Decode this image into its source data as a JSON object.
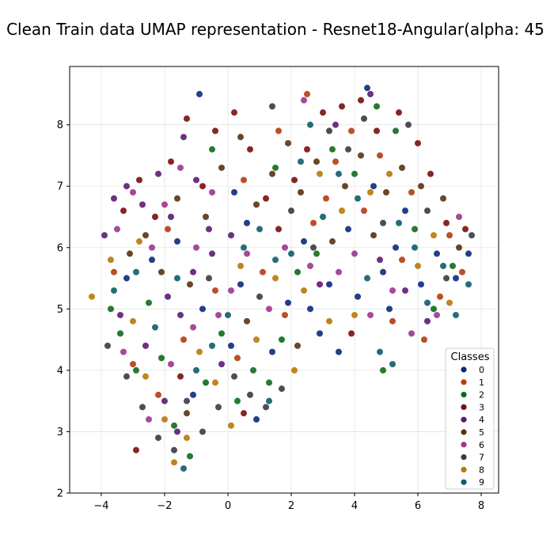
{
  "chart_data": {
    "type": "scatter",
    "title": "Clean Train data UMAP representation - Resnet18-Angular(alpha: 45",
    "xlabel": "",
    "ylabel": "",
    "xlim": [
      -5.0,
      8.55
    ],
    "ylim": [
      2.0,
      8.95
    ],
    "xticks": [
      -4,
      -2,
      0,
      2,
      4,
      6,
      8
    ],
    "yticks": [
      2,
      3,
      4,
      5,
      6,
      7,
      8
    ],
    "xtick_labels": [
      "−4",
      "−2",
      "0",
      "2",
      "4",
      "6",
      "8"
    ],
    "ytick_labels": [
      "2",
      "3",
      "4",
      "5",
      "6",
      "7",
      "8"
    ],
    "grid": true,
    "legend": {
      "title": "Classes",
      "placement": "lower-right",
      "entries": [
        "0",
        "1",
        "2",
        "3",
        "4",
        "5",
        "6",
        "7",
        "8",
        "9"
      ]
    },
    "series": [
      {
        "name": "0",
        "color": "#0b2a7a",
        "points": [
          [
            -3.2,
            5.5
          ],
          [
            -2.4,
            5.8
          ],
          [
            -1.6,
            6.1
          ],
          [
            -0.8,
            5.0
          ],
          [
            0.1,
            4.4
          ],
          [
            0.4,
            5.4
          ],
          [
            0.6,
            6.4
          ],
          [
            0.2,
            6.9
          ],
          [
            1.4,
            4.3
          ],
          [
            1.9,
            5.1
          ],
          [
            2.4,
            6.1
          ],
          [
            2.6,
            5.0
          ],
          [
            2.9,
            4.6
          ],
          [
            3.2,
            5.4
          ],
          [
            3.8,
            6.3
          ],
          [
            4.1,
            5.2
          ],
          [
            4.4,
            8.6
          ],
          [
            4.6,
            7.0
          ],
          [
            4.9,
            5.6
          ],
          [
            5.1,
            5.0
          ],
          [
            5.3,
            6.0
          ],
          [
            5.6,
            6.6
          ],
          [
            6.1,
            5.4
          ],
          [
            6.6,
            5.9
          ],
          [
            7.2,
            5.5
          ],
          [
            7.6,
            5.9
          ],
          [
            -0.9,
            8.5
          ],
          [
            -1.1,
            3.6
          ],
          [
            0.9,
            3.2
          ],
          [
            3.5,
            4.3
          ]
        ]
      },
      {
        "name": "1",
        "color": "#b33d0f",
        "points": [
          [
            -3.0,
            4.1
          ],
          [
            -2.2,
            3.6
          ],
          [
            -1.4,
            4.5
          ],
          [
            -0.4,
            5.3
          ],
          [
            0.5,
            7.1
          ],
          [
            1.1,
            5.6
          ],
          [
            1.6,
            7.9
          ],
          [
            2.5,
            8.5
          ],
          [
            2.7,
            6.4
          ],
          [
            3.1,
            6.8
          ],
          [
            3.4,
            7.4
          ],
          [
            3.9,
            7.9
          ],
          [
            4.3,
            6.6
          ],
          [
            4.8,
            7.5
          ],
          [
            5.2,
            4.8
          ],
          [
            5.5,
            5.8
          ],
          [
            5.8,
            6.9
          ],
          [
            6.2,
            4.5
          ],
          [
            6.7,
            5.2
          ],
          [
            7.0,
            6.2
          ],
          [
            7.4,
            5.6
          ],
          [
            -3.6,
            5.6
          ],
          [
            -1.9,
            6.3
          ],
          [
            0.3,
            4.2
          ],
          [
            1.8,
            4.9
          ]
        ]
      },
      {
        "name": "2",
        "color": "#0d6b18",
        "points": [
          [
            -3.7,
            5.0
          ],
          [
            -3.4,
            4.6
          ],
          [
            -2.9,
            4.0
          ],
          [
            -2.5,
            5.1
          ],
          [
            -2.1,
            4.2
          ],
          [
            -1.7,
            3.1
          ],
          [
            -1.2,
            2.6
          ],
          [
            -0.7,
            3.8
          ],
          [
            -0.2,
            4.6
          ],
          [
            0.3,
            3.5
          ],
          [
            0.8,
            4.0
          ],
          [
            1.3,
            3.8
          ],
          [
            1.7,
            4.5
          ],
          [
            1.5,
            7.3
          ],
          [
            2.2,
            5.6
          ],
          [
            2.8,
            5.9
          ],
          [
            3.3,
            7.6
          ],
          [
            4.0,
            7.2
          ],
          [
            4.7,
            8.3
          ],
          [
            5.3,
            7.9
          ],
          [
            5.9,
            6.3
          ],
          [
            4.9,
            4.0
          ],
          [
            6.5,
            5.0
          ],
          [
            7.1,
            5.7
          ],
          [
            -0.5,
            7.6
          ]
        ]
      },
      {
        "name": "3",
        "color": "#7a0d0d",
        "points": [
          [
            -3.3,
            6.6
          ],
          [
            -2.8,
            7.1
          ],
          [
            -2.3,
            6.5
          ],
          [
            -1.8,
            7.4
          ],
          [
            -1.3,
            8.1
          ],
          [
            -0.8,
            7.0
          ],
          [
            -0.4,
            7.9
          ],
          [
            0.2,
            8.2
          ],
          [
            0.7,
            7.6
          ],
          [
            1.2,
            6.8
          ],
          [
            1.6,
            6.3
          ],
          [
            2.1,
            7.1
          ],
          [
            2.5,
            7.6
          ],
          [
            3.0,
            8.2
          ],
          [
            3.6,
            8.3
          ],
          [
            4.2,
            8.4
          ],
          [
            4.7,
            7.9
          ],
          [
            5.4,
            8.2
          ],
          [
            6.0,
            7.7
          ],
          [
            6.4,
            7.2
          ],
          [
            6.9,
            6.4
          ],
          [
            7.5,
            6.3
          ],
          [
            -2.9,
            2.7
          ],
          [
            -1.5,
            3.9
          ],
          [
            0.5,
            3.3
          ],
          [
            3.9,
            4.6
          ]
        ]
      },
      {
        "name": "4",
        "color": "#5e1a73",
        "points": [
          [
            -3.9,
            6.2
          ],
          [
            -3.6,
            6.8
          ],
          [
            -3.2,
            7.0
          ],
          [
            -2.7,
            6.7
          ],
          [
            -2.2,
            7.2
          ],
          [
            -1.8,
            6.5
          ],
          [
            -1.4,
            7.8
          ],
          [
            -1.0,
            7.1
          ],
          [
            -0.6,
            6.3
          ],
          [
            -3.4,
            4.9
          ],
          [
            -2.6,
            4.4
          ],
          [
            -1.9,
            5.2
          ],
          [
            -1.5,
            4.9
          ],
          [
            -1.1,
            5.6
          ],
          [
            -0.5,
            5.9
          ],
          [
            0.1,
            6.2
          ],
          [
            -2.0,
            3.5
          ],
          [
            -1.6,
            3.0
          ],
          [
            4.5,
            8.5
          ],
          [
            3.4,
            8.0
          ],
          [
            2.9,
            5.4
          ],
          [
            4.8,
            5.8
          ],
          [
            5.6,
            5.3
          ],
          [
            6.3,
            4.8
          ],
          [
            -0.2,
            4.1
          ]
        ]
      },
      {
        "name": "5",
        "color": "#5a3210",
        "points": [
          [
            -3.1,
            5.9
          ],
          [
            -2.6,
            6.2
          ],
          [
            -2.1,
            5.6
          ],
          [
            -1.6,
            6.8
          ],
          [
            -1.2,
            5.4
          ],
          [
            -0.7,
            6.5
          ],
          [
            -0.2,
            7.3
          ],
          [
            0.4,
            7.8
          ],
          [
            0.9,
            6.7
          ],
          [
            1.4,
            7.2
          ],
          [
            1.9,
            7.7
          ],
          [
            2.3,
            6.9
          ],
          [
            2.8,
            7.4
          ],
          [
            3.3,
            6.1
          ],
          [
            3.7,
            7.0
          ],
          [
            4.2,
            7.5
          ],
          [
            4.6,
            6.2
          ],
          [
            5.0,
            6.9
          ],
          [
            5.5,
            7.3
          ],
          [
            6.1,
            7.0
          ],
          [
            6.8,
            6.8
          ],
          [
            7.3,
            6.0
          ],
          [
            -1.3,
            3.3
          ],
          [
            0.6,
            4.8
          ],
          [
            2.2,
            4.4
          ]
        ]
      },
      {
        "name": "6",
        "color": "#9c3590",
        "points": [
          [
            -3.5,
            6.3
          ],
          [
            -3.0,
            6.9
          ],
          [
            -2.4,
            6.0
          ],
          [
            -2.0,
            6.7
          ],
          [
            -1.5,
            7.3
          ],
          [
            -1.0,
            6.0
          ],
          [
            -0.5,
            6.9
          ],
          [
            0.1,
            5.3
          ],
          [
            0.6,
            5.9
          ],
          [
            1.3,
            5.0
          ],
          [
            1.8,
            6.0
          ],
          [
            2.4,
            8.4
          ],
          [
            2.6,
            5.7
          ],
          [
            3.5,
            5.6
          ],
          [
            4.0,
            5.9
          ],
          [
            4.5,
            4.9
          ],
          [
            5.2,
            5.3
          ],
          [
            5.8,
            4.6
          ],
          [
            6.6,
            4.9
          ],
          [
            7.3,
            6.5
          ],
          [
            -3.3,
            4.3
          ],
          [
            -2.5,
            3.2
          ],
          [
            -1.8,
            4.1
          ],
          [
            -1.1,
            4.7
          ],
          [
            -0.3,
            4.9
          ]
        ]
      },
      {
        "name": "7",
        "color": "#3a3a45",
        "points": [
          [
            -3.8,
            4.4
          ],
          [
            -3.2,
            3.9
          ],
          [
            -2.7,
            3.4
          ],
          [
            -2.2,
            2.9
          ],
          [
            -1.7,
            2.7
          ],
          [
            -1.3,
            3.5
          ],
          [
            -0.8,
            3.0
          ],
          [
            -0.3,
            3.4
          ],
          [
            0.2,
            3.9
          ],
          [
            0.7,
            3.6
          ],
          [
            1.2,
            3.4
          ],
          [
            1.7,
            3.7
          ],
          [
            1.4,
            8.3
          ],
          [
            2.0,
            6.6
          ],
          [
            2.7,
            6.0
          ],
          [
            3.2,
            7.9
          ],
          [
            3.8,
            7.6
          ],
          [
            4.3,
            8.1
          ],
          [
            4.9,
            6.4
          ],
          [
            5.7,
            8.0
          ],
          [
            6.3,
            6.6
          ],
          [
            6.9,
            5.5
          ],
          [
            7.7,
            6.2
          ],
          [
            -0.6,
            5.5
          ],
          [
            1.0,
            5.2
          ]
        ]
      },
      {
        "name": "8",
        "color": "#b8780a",
        "points": [
          [
            -4.3,
            5.2
          ],
          [
            -3.7,
            5.8
          ],
          [
            -3.0,
            4.8
          ],
          [
            -2.6,
            3.9
          ],
          [
            -2.0,
            3.2
          ],
          [
            -1.7,
            2.5
          ],
          [
            -1.3,
            2.9
          ],
          [
            -0.9,
            4.3
          ],
          [
            -0.4,
            3.8
          ],
          [
            0.1,
            3.1
          ],
          [
            0.4,
            5.7
          ],
          [
            0.9,
            4.5
          ],
          [
            1.5,
            5.5
          ],
          [
            2.1,
            4.0
          ],
          [
            2.4,
            5.3
          ],
          [
            2.9,
            7.2
          ],
          [
            3.2,
            4.8
          ],
          [
            3.6,
            6.6
          ],
          [
            4.0,
            4.9
          ],
          [
            4.5,
            6.9
          ],
          [
            5.1,
            7.2
          ],
          [
            6.0,
            5.7
          ],
          [
            6.5,
            6.2
          ],
          [
            7.0,
            5.1
          ],
          [
            -2.8,
            6.1
          ]
        ]
      },
      {
        "name": "9",
        "color": "#0c5e6b",
        "points": [
          [
            -3.6,
            5.3
          ],
          [
            -2.9,
            5.6
          ],
          [
            -2.3,
            4.7
          ],
          [
            -1.6,
            5.5
          ],
          [
            -1.0,
            4.0
          ],
          [
            -0.5,
            4.4
          ],
          [
            0.0,
            4.9
          ],
          [
            0.5,
            6.0
          ],
          [
            1.0,
            6.3
          ],
          [
            1.5,
            5.8
          ],
          [
            2.0,
            5.9
          ],
          [
            2.3,
            7.4
          ],
          [
            2.6,
            8.0
          ],
          [
            3.0,
            6.5
          ],
          [
            3.5,
            7.2
          ],
          [
            4.1,
            6.8
          ],
          [
            4.4,
            5.5
          ],
          [
            4.8,
            4.3
          ],
          [
            5.2,
            4.1
          ],
          [
            5.4,
            6.4
          ],
          [
            5.9,
            6.0
          ],
          [
            6.3,
            5.1
          ],
          [
            6.8,
            5.7
          ],
          [
            7.2,
            4.9
          ],
          [
            7.6,
            5.4
          ],
          [
            1.3,
            3.5
          ],
          [
            -1.4,
            2.4
          ]
        ]
      }
    ]
  }
}
